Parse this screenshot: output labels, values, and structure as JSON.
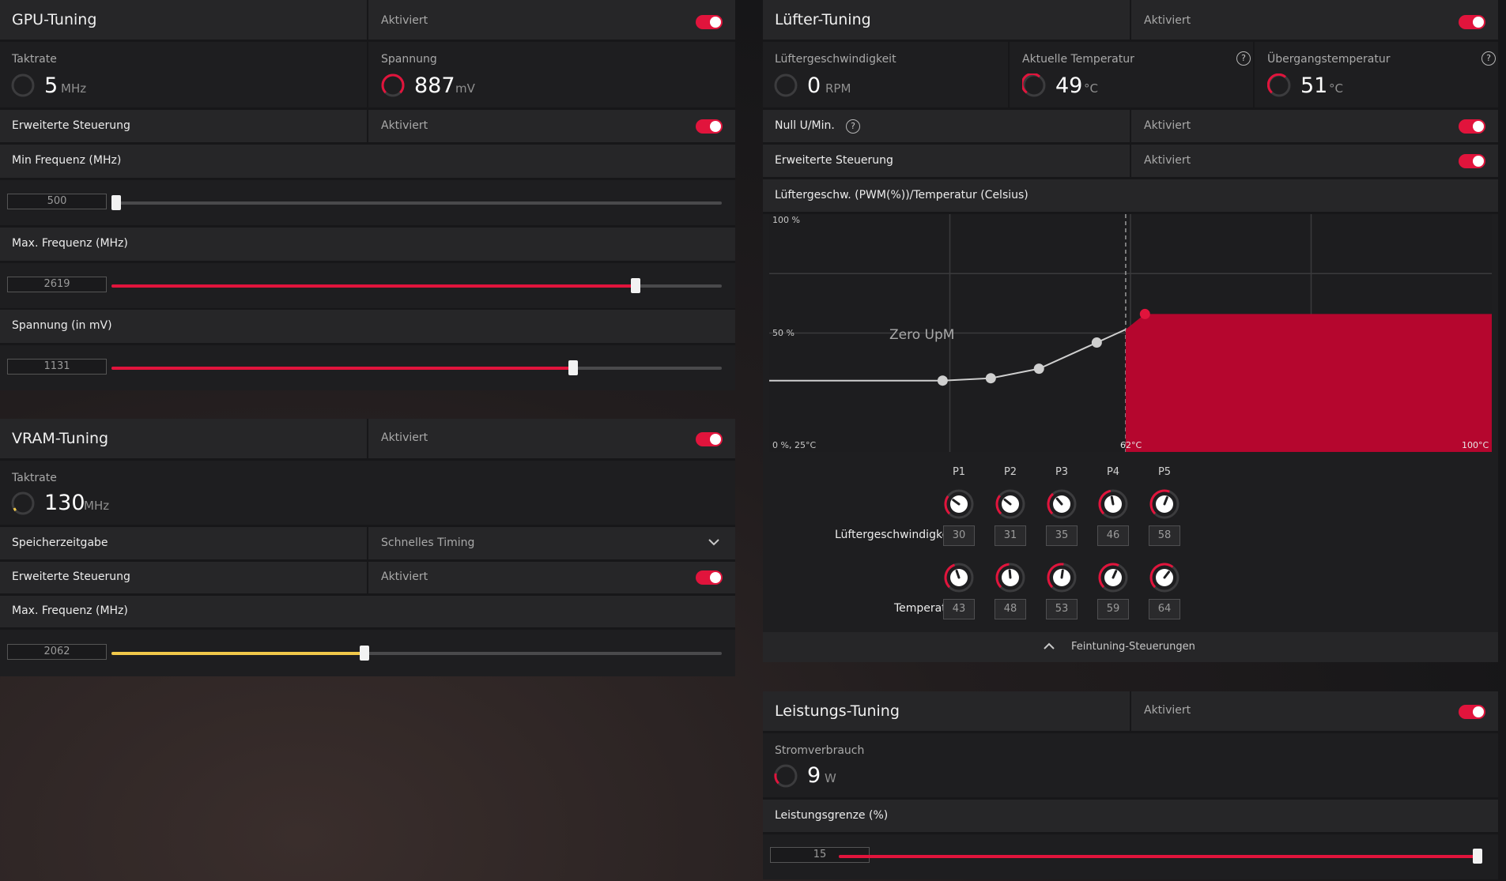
{
  "gpu": {
    "title": "GPU-Tuning",
    "status": "Aktiviert",
    "clock": {
      "label": "Taktrate",
      "value": "5",
      "unit": "MHz"
    },
    "voltage": {
      "label": "Spannung",
      "value": "887",
      "unit": "mV"
    },
    "advanced": {
      "label": "Erweiterte Steuerung",
      "status": "Aktiviert"
    },
    "min_freq": {
      "label": "Min Frequenz (MHz)",
      "value": "500",
      "level": 0.0
    },
    "max_freq": {
      "label": "Max. Frequenz (MHz)",
      "value": "2619",
      "level": 0.86
    },
    "voltage_mv": {
      "label": "Spannung (in mV)",
      "value": "1131",
      "level": 0.755
    }
  },
  "vram": {
    "title": "VRAM-Tuning",
    "status": "Aktiviert",
    "clock": {
      "label": "Taktrate",
      "value": "130",
      "unit": "MHz"
    },
    "memory_timing": {
      "label": "Speicherzeitgabe",
      "value": "Schnelles Timing"
    },
    "advanced": {
      "label": "Erweiterte Steuerung",
      "status": "Aktiviert"
    },
    "max_freq": {
      "label": "Max. Frequenz (MHz)",
      "value": "2062",
      "level": 0.415
    }
  },
  "fan": {
    "title": "Lüfter-Tuning",
    "status": "Aktiviert",
    "speed": {
      "label": "Lüftergeschwindigkeit",
      "value": "0",
      "unit": "RPM"
    },
    "current_temp": {
      "label": "Aktuelle Temperatur",
      "value": "49",
      "unit": "°C"
    },
    "junction_temp": {
      "label": "Übergangstemperatur",
      "value": "51",
      "unit": "°C"
    },
    "zero_rpm": {
      "label": "Null U/Min.",
      "status": "Aktiviert"
    },
    "advanced": {
      "label": "Erweiterte Steuerung",
      "status": "Aktiviert"
    },
    "curve_title": "Lüftergeschw. (PWM(%))/Temperatur (Celsius)",
    "chart_labels": {
      "y_top": "100 %",
      "y_mid": "50 %",
      "origin": "0 %, 25°C",
      "x_threshold": "62°C",
      "x_max": "100°C",
      "zero_rpm_zone": "Zero UpM"
    },
    "points": [
      "P1",
      "P2",
      "P3",
      "P4",
      "P5"
    ],
    "speed_row_label": "Lüftergeschwindigkeit",
    "temp_row_label": "Temperatur",
    "speeds": [
      "30",
      "31",
      "35",
      "46",
      "58"
    ],
    "temps": [
      "43",
      "48",
      "53",
      "59",
      "64"
    ],
    "fine_tuning": "Feintuning-Steuerungen"
  },
  "power": {
    "title": "Leistungs-Tuning",
    "status": "Aktiviert",
    "consumption": {
      "label": "Stromverbrauch",
      "value": "9",
      "unit": "W"
    },
    "limit": {
      "label": "Leistungsgrenze (%)",
      "value": "15",
      "level": 1.0
    }
  },
  "colors": {
    "accent": "#e1143c",
    "vram_accent": "#f0c84a",
    "fill": "#b5062e"
  },
  "chart_data": {
    "type": "area",
    "xlabel": "Temperatur (Celsius)",
    "ylabel": "Lüftergeschw. (PWM(%))",
    "x_ticks": [
      "25°C",
      "62°C",
      "100°C"
    ],
    "y_ticks": [
      "0 %",
      "50 %",
      "100 %"
    ],
    "xlim": [
      25,
      100
    ],
    "ylim": [
      0,
      100
    ],
    "x": [
      43,
      48,
      53,
      59,
      64
    ],
    "y": [
      30,
      31,
      35,
      46,
      58
    ],
    "zero_rpm_threshold": 62
  }
}
